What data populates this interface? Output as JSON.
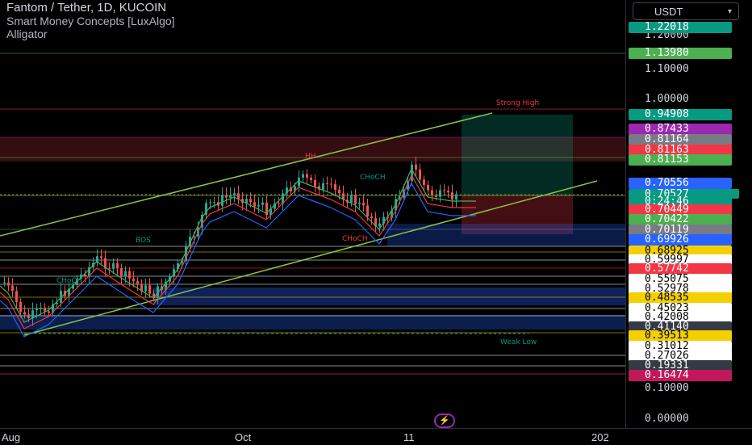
{
  "legend": {
    "symbol": "Fantom / Tether, 1D, KUCOIN",
    "indicator1": "Smart Money Concepts [LuxAlgo]",
    "indicator2": "Alligator"
  },
  "currency": {
    "label": "USDT",
    "icon": "chevron-down-icon"
  },
  "annotations": {
    "strong_high": "Strong High",
    "weak_low": "Weak Low",
    "bos": "BOS",
    "choch1": "CHoCH",
    "choch2": "CHoCH",
    "choch3": "CHoCH",
    "hh": "HH"
  },
  "price_ticks": [
    "1.20000",
    "1.10000",
    "1.00000",
    "0.10000",
    "0.00000"
  ],
  "price_badges": [
    {
      "value": "1.22018",
      "bg": "#089981",
      "fg": "#ffffff"
    },
    {
      "value": "1.13980",
      "bg": "#4caf50",
      "fg": "#ffffff"
    },
    {
      "value": "0.94908",
      "bg": "#089981",
      "fg": "#ffffff"
    },
    {
      "value": "0.87433",
      "bg": "#9c27b0",
      "fg": "#ffffff"
    },
    {
      "value": "0.81164",
      "bg": "#787b86",
      "fg": "#ffffff"
    },
    {
      "value": "0.81163",
      "bg": "#f23645",
      "fg": "#ffffff"
    },
    {
      "value": "0.81153",
      "bg": "#4caf50",
      "fg": "#ffffff"
    },
    {
      "value": "0.70556",
      "bg": "#2962ff",
      "fg": "#ffffff"
    },
    {
      "value": "0.70527",
      "bg": "#089981",
      "fg": "#ffffff"
    },
    {
      "value": "0:24:46",
      "bg": "#089981",
      "fg": "#ffffff"
    },
    {
      "value": "0.70449",
      "bg": "#f23645",
      "fg": "#ffffff"
    },
    {
      "value": "0.70422",
      "bg": "#4caf50",
      "fg": "#ffffff"
    },
    {
      "value": "0.70119",
      "bg": "#787b86",
      "fg": "#ffffff"
    },
    {
      "value": "0.69926",
      "bg": "#2962ff",
      "fg": "#ffffff"
    },
    {
      "value": "0.68925",
      "bg": "#f5d000",
      "fg": "#000000"
    },
    {
      "value": "0.59997",
      "bg": "#ffffff",
      "fg": "#000000"
    },
    {
      "value": "0.57742",
      "bg": "#f23645",
      "fg": "#ffffff"
    },
    {
      "value": "0.55075",
      "bg": "#ffffff",
      "fg": "#000000"
    },
    {
      "value": "0.52978",
      "bg": "#ffffff",
      "fg": "#000000"
    },
    {
      "value": "0.48535",
      "bg": "#f5d000",
      "fg": "#000000"
    },
    {
      "value": "0.45023",
      "bg": "#ffffff",
      "fg": "#000000"
    },
    {
      "value": "0.42008",
      "bg": "#ffffff",
      "fg": "#000000"
    },
    {
      "value": "0.41140",
      "bg": "#363a45",
      "fg": "#ffffff"
    },
    {
      "value": "0.39513",
      "bg": "#f5d000",
      "fg": "#000000"
    },
    {
      "value": "0.31012",
      "bg": "#ffffff",
      "fg": "#000000"
    },
    {
      "value": "0.27026",
      "bg": "#ffffff",
      "fg": "#000000"
    },
    {
      "value": "0.19331",
      "bg": "#363a45",
      "fg": "#ffffff"
    },
    {
      "value": "0.16474",
      "bg": "#c2185b",
      "fg": "#ffffff"
    }
  ],
  "time_labels": [
    "Aug",
    "Oct",
    "11",
    "202"
  ],
  "bottom_icon": "lightning-icon"
}
